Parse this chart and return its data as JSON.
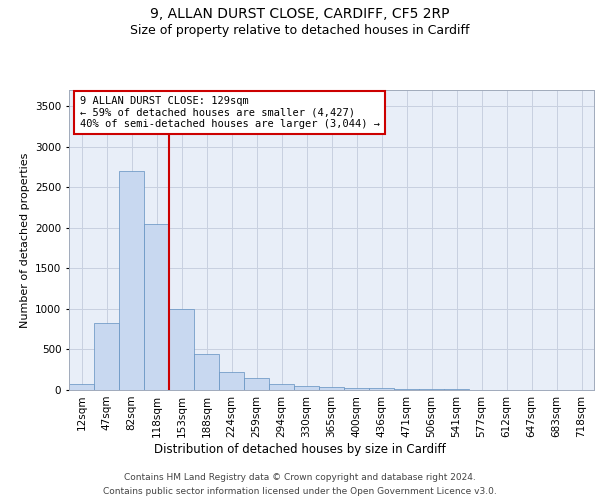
{
  "title1": "9, ALLAN DURST CLOSE, CARDIFF, CF5 2RP",
  "title2": "Size of property relative to detached houses in Cardiff",
  "xlabel": "Distribution of detached houses by size in Cardiff",
  "ylabel": "Number of detached properties",
  "categories": [
    "12sqm",
    "47sqm",
    "82sqm",
    "118sqm",
    "153sqm",
    "188sqm",
    "224sqm",
    "259sqm",
    "294sqm",
    "330sqm",
    "365sqm",
    "400sqm",
    "436sqm",
    "471sqm",
    "506sqm",
    "541sqm",
    "577sqm",
    "612sqm",
    "647sqm",
    "683sqm",
    "718sqm"
  ],
  "values": [
    75,
    825,
    2700,
    2050,
    1000,
    450,
    225,
    150,
    75,
    55,
    42,
    30,
    22,
    15,
    10,
    7,
    5,
    4,
    3,
    2,
    1
  ],
  "bar_color": "#c8d8f0",
  "bar_edgecolor": "#6090c0",
  "red_line_x": 3,
  "red_line_color": "#cc0000",
  "annotation_text": "9 ALLAN DURST CLOSE: 129sqm\n← 59% of detached houses are smaller (4,427)\n40% of semi-detached houses are larger (3,044) →",
  "annotation_box_edgecolor": "#cc0000",
  "annotation_box_facecolor": "#ffffff",
  "ylim": [
    0,
    3700
  ],
  "yticks": [
    0,
    500,
    1000,
    1500,
    2000,
    2500,
    3000,
    3500
  ],
  "footer_line1": "Contains HM Land Registry data © Crown copyright and database right 2024.",
  "footer_line2": "Contains public sector information licensed under the Open Government Licence v3.0.",
  "background_color": "#ffffff",
  "plot_bg_color": "#e8eef8",
  "grid_color": "#c8d0e0",
  "title1_fontsize": 10,
  "title2_fontsize": 9,
  "xlabel_fontsize": 8.5,
  "ylabel_fontsize": 8,
  "tick_fontsize": 7.5,
  "annotation_fontsize": 7.5,
  "footer_fontsize": 6.5
}
